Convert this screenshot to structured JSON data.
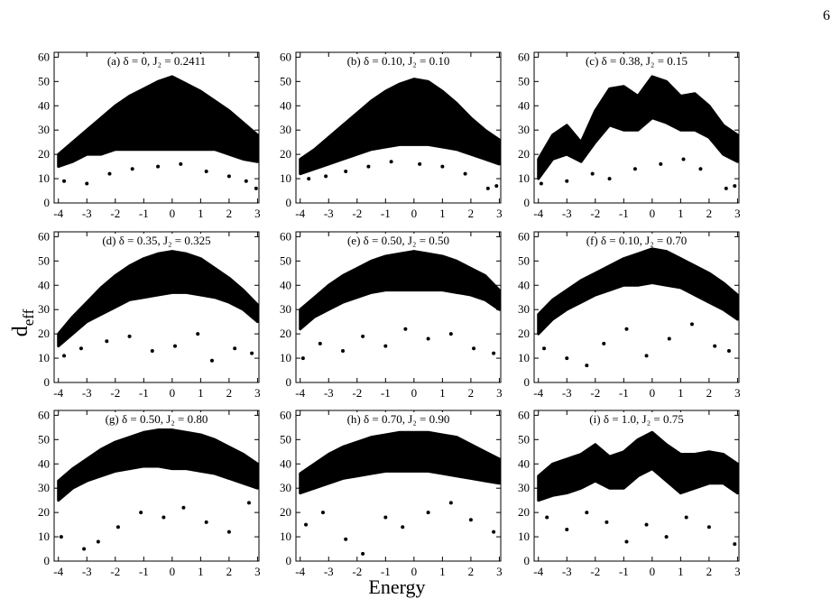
{
  "page_number": "6",
  "xlabel": "Energy",
  "ylabel": "d",
  "ylabel_subscript": "eff",
  "chart_data": [
    {
      "type": "scatter",
      "title": "(a)  δ = 0, J₂ = 0.2411",
      "xlim": [
        -4.15,
        3.05
      ],
      "ylim": [
        0,
        62
      ],
      "xticks": [
        -4,
        -3,
        -2,
        -1,
        0,
        1,
        2,
        3
      ],
      "yticks": [
        0,
        10,
        20,
        30,
        40,
        50,
        60
      ],
      "band": {
        "x": [
          -4,
          -3.5,
          -3,
          -2.5,
          -2,
          -1.5,
          -1,
          -0.5,
          0,
          0.5,
          1,
          1.5,
          2,
          2.5,
          3
        ],
        "upper": [
          20,
          25,
          30,
          35,
          40,
          44,
          47,
          50,
          52,
          49,
          46,
          42,
          38,
          33,
          28
        ],
        "lower": [
          15,
          17,
          20,
          20,
          22,
          22,
          22,
          22,
          22,
          22,
          22,
          22,
          20,
          18,
          17
        ]
      },
      "points": {
        "x": [
          -3.8,
          -3,
          -2.2,
          -1.4,
          -0.5,
          0.3,
          1.2,
          2,
          2.6,
          2.95
        ],
        "y": [
          9,
          8,
          12,
          14,
          15,
          16,
          13,
          11,
          9,
          6
        ]
      }
    },
    {
      "type": "scatter",
      "title": "(b)  δ = 0.10, J₂ = 0.10",
      "xlim": [
        -4.15,
        3.05
      ],
      "ylim": [
        0,
        62
      ],
      "xticks": [
        -4,
        -3,
        -2,
        -1,
        0,
        1,
        2,
        3
      ],
      "yticks": [
        0,
        10,
        20,
        30,
        40,
        50,
        60
      ],
      "band": {
        "x": [
          -4,
          -3.5,
          -3,
          -2.5,
          -2,
          -1.5,
          -1,
          -0.5,
          0,
          0.5,
          1,
          1.5,
          2,
          2.5,
          3
        ],
        "upper": [
          18,
          22,
          27,
          32,
          37,
          42,
          46,
          49,
          51,
          50,
          46,
          41,
          35,
          30,
          26
        ],
        "lower": [
          12,
          14,
          16,
          18,
          20,
          22,
          23,
          24,
          24,
          24,
          23,
          22,
          20,
          18,
          16
        ]
      },
      "points": {
        "x": [
          -3.7,
          -3.1,
          -2.4,
          -1.6,
          -0.8,
          0.2,
          1,
          1.8,
          2.6,
          2.9
        ],
        "y": [
          10,
          11,
          13,
          15,
          17,
          16,
          15,
          12,
          6,
          7
        ]
      }
    },
    {
      "type": "scatter",
      "title": "(c)  δ = 0.38, J₂ = 0.15",
      "xlim": [
        -4.15,
        3.05
      ],
      "ylim": [
        0,
        62
      ],
      "xticks": [
        -4,
        -3,
        -2,
        -1,
        0,
        1,
        2,
        3
      ],
      "yticks": [
        0,
        10,
        20,
        30,
        40,
        50,
        60
      ],
      "band": {
        "x": [
          -4,
          -3.5,
          -3,
          -2.5,
          -2,
          -1.5,
          -1,
          -0.5,
          0,
          0.5,
          1,
          1.5,
          2,
          2.5,
          3
        ],
        "upper": [
          18,
          28,
          32,
          25,
          38,
          47,
          48,
          44,
          52,
          50,
          44,
          45,
          40,
          32,
          28
        ],
        "lower": [
          10,
          18,
          20,
          17,
          25,
          32,
          30,
          30,
          35,
          33,
          30,
          30,
          27,
          20,
          17
        ]
      },
      "points": {
        "x": [
          -3.9,
          -3,
          -2.1,
          -1.5,
          -0.6,
          0.3,
          1.1,
          1.7,
          2.6,
          2.9
        ],
        "y": [
          8,
          9,
          12,
          10,
          14,
          16,
          18,
          14,
          6,
          7
        ]
      }
    },
    {
      "type": "scatter",
      "title": "(d)  δ = 0.35, J₂ = 0.325",
      "xlim": [
        -4.15,
        3.05
      ],
      "ylim": [
        0,
        62
      ],
      "xticks": [
        -4,
        -3,
        -2,
        -1,
        0,
        1,
        2,
        3
      ],
      "yticks": [
        0,
        10,
        20,
        30,
        40,
        50,
        60
      ],
      "band": {
        "x": [
          -4,
          -3.5,
          -3,
          -2.5,
          -2,
          -1.5,
          -1,
          -0.5,
          0,
          0.5,
          1,
          1.5,
          2,
          2.5,
          3
        ],
        "upper": [
          20,
          27,
          33,
          39,
          44,
          48,
          51,
          53,
          54,
          53,
          51,
          47,
          43,
          38,
          32
        ],
        "lower": [
          15,
          20,
          25,
          28,
          31,
          34,
          35,
          36,
          37,
          37,
          36,
          35,
          33,
          30,
          25
        ]
      },
      "points": {
        "x": [
          -3.8,
          -3.2,
          -2.3,
          -1.5,
          -0.7,
          0.1,
          0.9,
          1.4,
          2.2,
          2.8
        ],
        "y": [
          11,
          14,
          17,
          19,
          13,
          15,
          20,
          9,
          14,
          12
        ]
      }
    },
    {
      "type": "scatter",
      "title": "(e)  δ = 0.50, J₂ = 0.50",
      "xlim": [
        -4.15,
        3.05
      ],
      "ylim": [
        0,
        62
      ],
      "xticks": [
        -4,
        -3,
        -2,
        -1,
        0,
        1,
        2,
        3
      ],
      "yticks": [
        0,
        10,
        20,
        30,
        40,
        50,
        60
      ],
      "band": {
        "x": [
          -4,
          -3.5,
          -3,
          -2.5,
          -2,
          -1.5,
          -1,
          -0.5,
          0,
          0.5,
          1,
          1.5,
          2,
          2.5,
          3
        ],
        "upper": [
          30,
          35,
          40,
          44,
          47,
          50,
          52,
          53,
          54,
          53,
          52,
          50,
          47,
          44,
          38
        ],
        "lower": [
          22,
          27,
          30,
          33,
          35,
          37,
          38,
          38,
          38,
          38,
          38,
          37,
          36,
          34,
          30
        ]
      },
      "points": {
        "x": [
          -3.9,
          -3.3,
          -2.5,
          -1.8,
          -1,
          -0.3,
          0.5,
          1.3,
          2.1,
          2.8
        ],
        "y": [
          10,
          16,
          13,
          19,
          15,
          22,
          18,
          20,
          14,
          12
        ]
      }
    },
    {
      "type": "scatter",
      "title": "(f)  δ = 0.10, J₂ = 0.70",
      "xlim": [
        -4.15,
        3.05
      ],
      "ylim": [
        0,
        62
      ],
      "xticks": [
        -4,
        -3,
        -2,
        -1,
        0,
        1,
        2,
        3
      ],
      "yticks": [
        0,
        10,
        20,
        30,
        40,
        50,
        60
      ],
      "band": {
        "x": [
          -4,
          -3.5,
          -3,
          -2.5,
          -2,
          -1.5,
          -1,
          -0.5,
          0,
          0.5,
          1,
          1.5,
          2,
          2.5,
          3
        ],
        "upper": [
          28,
          34,
          38,
          42,
          45,
          48,
          51,
          53,
          55,
          54,
          51,
          48,
          45,
          41,
          36
        ],
        "lower": [
          20,
          26,
          30,
          33,
          36,
          38,
          40,
          40,
          41,
          40,
          39,
          36,
          33,
          30,
          26
        ]
      },
      "points": {
        "x": [
          -3.8,
          -3,
          -2.3,
          -1.7,
          -0.9,
          -0.2,
          0.6,
          1.4,
          2.2,
          2.7
        ],
        "y": [
          14,
          10,
          7,
          16,
          22,
          11,
          18,
          24,
          15,
          13
        ]
      }
    },
    {
      "type": "scatter",
      "title": "(g)  δ = 0.50, J₂ = 0.80",
      "xlim": [
        -4.15,
        3.05
      ],
      "ylim": [
        0,
        62
      ],
      "xticks": [
        -4,
        -3,
        -2,
        -1,
        0,
        1,
        2,
        3
      ],
      "yticks": [
        0,
        10,
        20,
        30,
        40,
        50,
        60
      ],
      "band": {
        "x": [
          -4,
          -3.5,
          -3,
          -2.5,
          -2,
          -1.5,
          -1,
          -0.5,
          0,
          0.5,
          1,
          1.5,
          2,
          2.5,
          3
        ],
        "upper": [
          33,
          38,
          42,
          46,
          49,
          51,
          53,
          54,
          54,
          53,
          52,
          50,
          47,
          44,
          40
        ],
        "lower": [
          25,
          30,
          33,
          35,
          37,
          38,
          39,
          39,
          38,
          38,
          37,
          36,
          34,
          32,
          30
        ]
      },
      "points": {
        "x": [
          -3.9,
          -3.1,
          -2.6,
          -1.9,
          -1.1,
          -0.3,
          0.4,
          1.2,
          2,
          2.7
        ],
        "y": [
          10,
          5,
          8,
          14,
          20,
          18,
          22,
          16,
          12,
          24
        ]
      }
    },
    {
      "type": "scatter",
      "title": "(h)  δ = 0.70, J₂ = 0.90",
      "xlim": [
        -4.15,
        3.05
      ],
      "ylim": [
        0,
        62
      ],
      "xticks": [
        -4,
        -3,
        -2,
        -1,
        0,
        1,
        2,
        3
      ],
      "yticks": [
        0,
        10,
        20,
        30,
        40,
        50,
        60
      ],
      "band": {
        "x": [
          -4,
          -3.5,
          -3,
          -2.5,
          -2,
          -1.5,
          -1,
          -0.5,
          0,
          0.5,
          1,
          1.5,
          2,
          2.5,
          3
        ],
        "upper": [
          36,
          40,
          44,
          47,
          49,
          51,
          52,
          53,
          53,
          53,
          52,
          51,
          48,
          45,
          42
        ],
        "lower": [
          28,
          30,
          32,
          34,
          35,
          36,
          37,
          37,
          37,
          37,
          36,
          35,
          34,
          33,
          32
        ]
      },
      "points": {
        "x": [
          -3.8,
          -3.2,
          -2.4,
          -1.8,
          -1,
          -0.4,
          0.5,
          1.3,
          2,
          2.8
        ],
        "y": [
          15,
          20,
          9,
          3,
          18,
          14,
          20,
          24,
          17,
          12
        ]
      }
    },
    {
      "type": "scatter",
      "title": "(i)  δ = 1.0, J₂ = 0.75",
      "xlim": [
        -4.15,
        3.05
      ],
      "ylim": [
        0,
        62
      ],
      "xticks": [
        -4,
        -3,
        -2,
        -1,
        0,
        1,
        2,
        3
      ],
      "yticks": [
        0,
        10,
        20,
        30,
        40,
        50,
        60
      ],
      "band": {
        "x": [
          -4,
          -3.5,
          -3,
          -2.5,
          -2,
          -1.5,
          -1,
          -0.5,
          0,
          0.5,
          1,
          1.5,
          2,
          2.5,
          3
        ],
        "upper": [
          35,
          40,
          42,
          44,
          48,
          43,
          45,
          50,
          53,
          48,
          44,
          44,
          45,
          44,
          40
        ],
        "lower": [
          25,
          27,
          28,
          30,
          33,
          30,
          30,
          35,
          38,
          33,
          28,
          30,
          32,
          32,
          28
        ]
      },
      "points": {
        "x": [
          -3.7,
          -3,
          -2.3,
          -1.6,
          -0.9,
          -0.2,
          0.5,
          1.2,
          2,
          2.9
        ],
        "y": [
          18,
          13,
          20,
          16,
          8,
          15,
          10,
          18,
          14,
          7
        ]
      }
    }
  ]
}
